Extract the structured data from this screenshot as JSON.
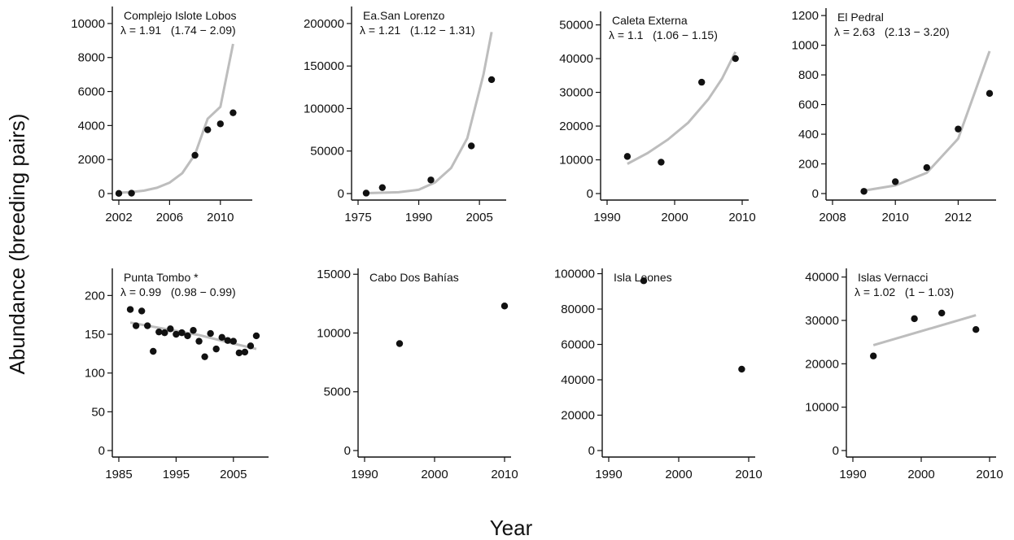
{
  "figure": {
    "ylabel": "Abundance (breeding pairs)",
    "xlabel": "Year"
  },
  "chart_data": [
    {
      "type": "scatter",
      "title": "Complejo Islote Lobos",
      "stat": "λ = 1.91   (1.74 − 2.09)",
      "xlim": [
        2002,
        2012
      ],
      "ylim": [
        0,
        11000
      ],
      "xticks": [
        2002,
        2006,
        2010
      ],
      "yticks": [
        0,
        2000,
        4000,
        6000,
        8000,
        10000
      ],
      "points": [
        [
          2002,
          10
        ],
        [
          2003,
          20
        ],
        [
          2008,
          2250
        ],
        [
          2009,
          3750
        ],
        [
          2010,
          4100
        ],
        [
          2011,
          4750
        ]
      ],
      "fit": [
        [
          2002,
          50
        ],
        [
          2003,
          90
        ],
        [
          2004,
          170
        ],
        [
          2005,
          340
        ],
        [
          2006,
          640
        ],
        [
          2007,
          1200
        ],
        [
          2008,
          2300
        ],
        [
          2009,
          4400
        ],
        [
          2010,
          5100
        ],
        [
          2011,
          8800
        ]
      ]
    },
    {
      "type": "scatter",
      "title": "Ea.San Lorenzo",
      "stat": "λ = 1.21   (1.12 − 1.31)",
      "xlim": [
        1975,
        2010
      ],
      "ylim": [
        0,
        220000
      ],
      "xticks": [
        1975,
        1990,
        2005
      ],
      "yticks": [
        0,
        50000,
        100000,
        150000,
        200000
      ],
      "points": [
        [
          1977,
          500
        ],
        [
          1981,
          7000
        ],
        [
          1993,
          16000
        ],
        [
          2003,
          56000
        ],
        [
          2008,
          134000
        ]
      ],
      "fit": [
        [
          1977,
          500
        ],
        [
          1985,
          1500
        ],
        [
          1990,
          4500
        ],
        [
          1994,
          13000
        ],
        [
          1998,
          30000
        ],
        [
          2002,
          65000
        ],
        [
          2006,
          140000
        ],
        [
          2008,
          190000
        ]
      ]
    },
    {
      "type": "scatter",
      "title": "Caleta Externa",
      "stat": "λ = 1.1   (1.06 − 1.15)",
      "xlim": [
        1990,
        2010
      ],
      "ylim": [
        0,
        54000
      ],
      "xticks": [
        1990,
        2000,
        2010
      ],
      "yticks": [
        0,
        10000,
        20000,
        30000,
        40000,
        50000
      ],
      "points": [
        [
          1993,
          11000
        ],
        [
          1998,
          9300
        ],
        [
          2004,
          33000
        ],
        [
          2009,
          40000
        ]
      ],
      "fit": [
        [
          1993,
          8800
        ],
        [
          1996,
          12000
        ],
        [
          1999,
          16000
        ],
        [
          2002,
          21000
        ],
        [
          2005,
          28000
        ],
        [
          2007,
          34000
        ],
        [
          2009,
          42000
        ]
      ]
    },
    {
      "type": "scatter",
      "title": "El Pedral",
      "stat": "λ = 2.63   (2.13 − 3.20)",
      "xlim": [
        2008,
        2013
      ],
      "ylim": [
        0,
        1250
      ],
      "xticks": [
        2008,
        2010,
        2012
      ],
      "yticks": [
        0,
        200,
        400,
        600,
        800,
        1000,
        1200
      ],
      "points": [
        [
          2009,
          15
        ],
        [
          2010,
          80
        ],
        [
          2011,
          175
        ],
        [
          2012,
          435
        ],
        [
          2013,
          675
        ]
      ],
      "fit": [
        [
          2009,
          20
        ],
        [
          2010,
          55
        ],
        [
          2011,
          140
        ],
        [
          2012,
          370
        ],
        [
          2013,
          960
        ]
      ]
    },
    {
      "type": "scatter",
      "title": "Punta Tombo *",
      "stat": "λ = 0.99   (0.98 − 0.99)",
      "xlim": [
        1985,
        2010
      ],
      "ylim": [
        0,
        235
      ],
      "xticks": [
        1985,
        1995,
        2005
      ],
      "yticks": [
        0,
        50,
        100,
        150,
        200
      ],
      "points": [
        [
          1987,
          182
        ],
        [
          1988,
          161
        ],
        [
          1989,
          180
        ],
        [
          1990,
          161
        ],
        [
          1991,
          128
        ],
        [
          1992,
          153
        ],
        [
          1993,
          152
        ],
        [
          1994,
          157
        ],
        [
          1995,
          150
        ],
        [
          1996,
          152
        ],
        [
          1997,
          148
        ],
        [
          1998,
          155
        ],
        [
          1999,
          141
        ],
        [
          2000,
          121
        ],
        [
          2001,
          151
        ],
        [
          2002,
          131
        ],
        [
          2003,
          146
        ],
        [
          2004,
          142
        ],
        [
          2005,
          141
        ],
        [
          2006,
          126
        ],
        [
          2007,
          127
        ],
        [
          2008,
          135
        ],
        [
          2009,
          148
        ]
      ],
      "fit": [
        [
          1987,
          165
        ],
        [
          1993,
          157
        ],
        [
          1999,
          149
        ],
        [
          2005,
          138
        ],
        [
          2009,
          131
        ]
      ]
    },
    {
      "type": "scatter",
      "title": "Cabo Dos Bahías",
      "stat": "",
      "xlim": [
        1990,
        2010
      ],
      "ylim": [
        0,
        15500
      ],
      "xticks": [
        1990,
        2000,
        2010
      ],
      "yticks": [
        0,
        5000,
        10000,
        15000
      ],
      "points": [
        [
          1995,
          9100
        ],
        [
          2010,
          12300
        ]
      ],
      "fit": []
    },
    {
      "type": "scatter",
      "title": "Isla Leones",
      "stat": "",
      "xlim": [
        1990,
        2010
      ],
      "ylim": [
        0,
        103000
      ],
      "xticks": [
        1990,
        2000,
        2010
      ],
      "yticks": [
        0,
        20000,
        40000,
        60000,
        80000,
        100000
      ],
      "points": [
        [
          1995,
          96000
        ],
        [
          2009,
          46000
        ]
      ],
      "fit": []
    },
    {
      "type": "scatter",
      "title": "Islas Vernacci",
      "stat": "λ = 1.02   (1 − 1.03)",
      "xlim": [
        1990,
        2010
      ],
      "ylim": [
        0,
        42000
      ],
      "xticks": [
        1990,
        2000,
        2010
      ],
      "yticks": [
        0,
        10000,
        20000,
        30000,
        40000
      ],
      "points": [
        [
          1993,
          21800
        ],
        [
          1999,
          30400
        ],
        [
          2003,
          31700
        ],
        [
          2008,
          27900
        ]
      ],
      "fit": [
        [
          1993,
          24300
        ],
        [
          2008,
          31200
        ]
      ]
    }
  ]
}
